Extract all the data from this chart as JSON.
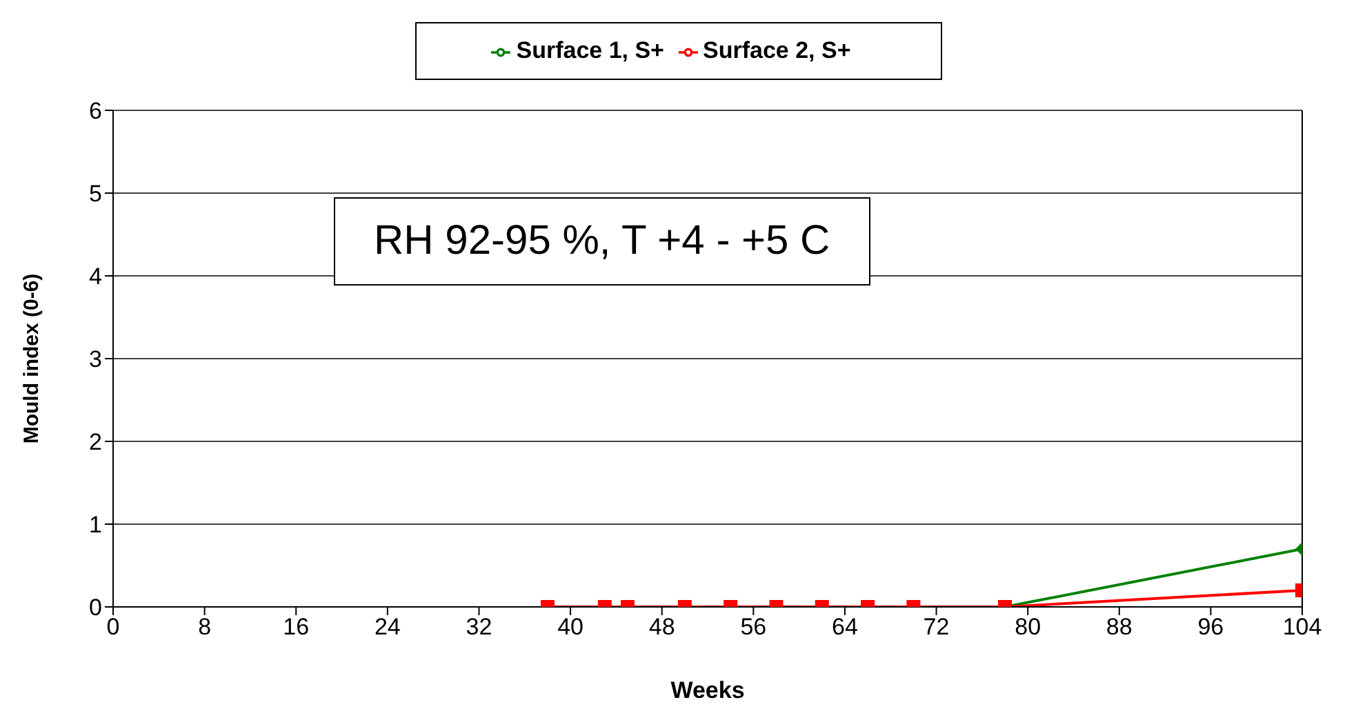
{
  "chart_data": {
    "type": "line",
    "x": [
      38,
      43,
      45,
      50,
      54,
      58,
      62,
      66,
      70,
      78,
      104
    ],
    "series": [
      {
        "name": "Surface 1, S+",
        "color": "#008000",
        "marker": "diamond",
        "values": [
          null,
          null,
          null,
          null,
          null,
          null,
          null,
          null,
          null,
          0,
          0.7
        ]
      },
      {
        "name": "Surface 2, S+",
        "color": "#ff0000",
        "marker": "square",
        "values": [
          0,
          0,
          0,
          0,
          0,
          0,
          0,
          0,
          0,
          0,
          0.2
        ]
      }
    ],
    "xlabel": "Weeks",
    "ylabel": "Mould index   (0-6)",
    "xlim": [
      0,
      104
    ],
    "xticks": [
      0,
      8,
      16,
      24,
      32,
      40,
      48,
      56,
      64,
      72,
      80,
      88,
      96,
      104
    ],
    "ylim": [
      0,
      6
    ],
    "yticks": [
      0,
      1,
      2,
      3,
      4,
      5,
      6
    ],
    "grid": "y",
    "legend": "top",
    "annotations": [
      "RH 92-95 %, T +4 - +5 C"
    ]
  }
}
